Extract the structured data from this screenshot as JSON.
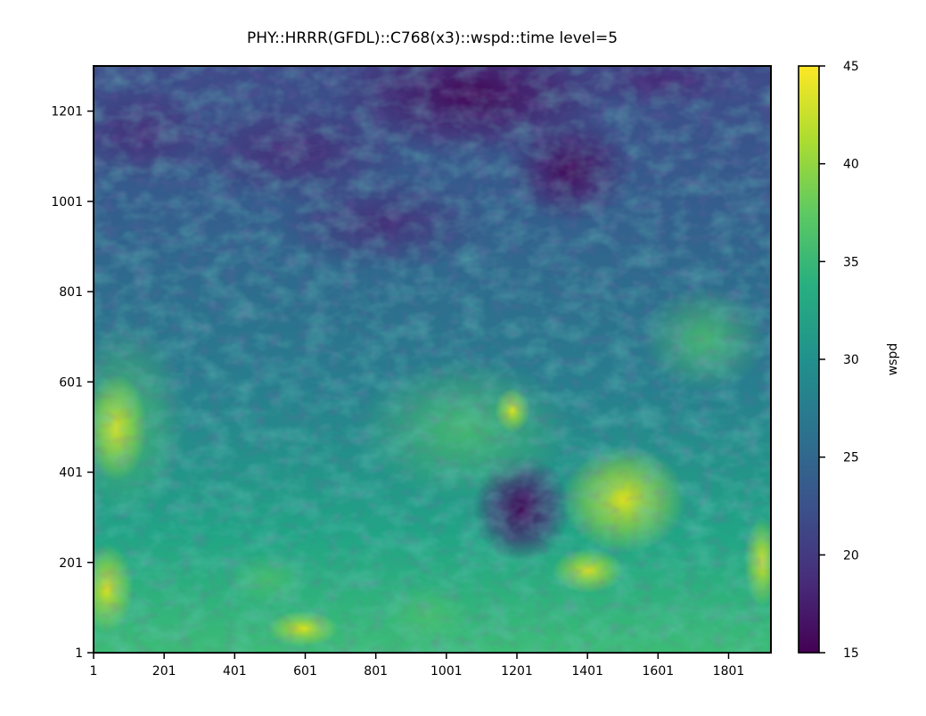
{
  "chart_data": {
    "type": "heatmap",
    "title": "PHY::HRRR(GFDL)::C768(x3)::wspd::time level=5",
    "xlabel": "",
    "ylabel": "",
    "x_ticks": [
      "1",
      "201",
      "401",
      "601",
      "801",
      "1001",
      "1201",
      "1401",
      "1601",
      "1801"
    ],
    "y_ticks": [
      "1",
      "201",
      "401",
      "601",
      "801",
      "1001",
      "1201"
    ],
    "xlim": [
      1,
      1921
    ],
    "ylim": [
      1,
      1301
    ],
    "colorbar": {
      "label": "wspd",
      "range": [
        15,
        45
      ],
      "ticks": [
        "15",
        "20",
        "25",
        "30",
        "35",
        "40",
        "45"
      ],
      "colormap": "viridis"
    },
    "grid": false
  }
}
